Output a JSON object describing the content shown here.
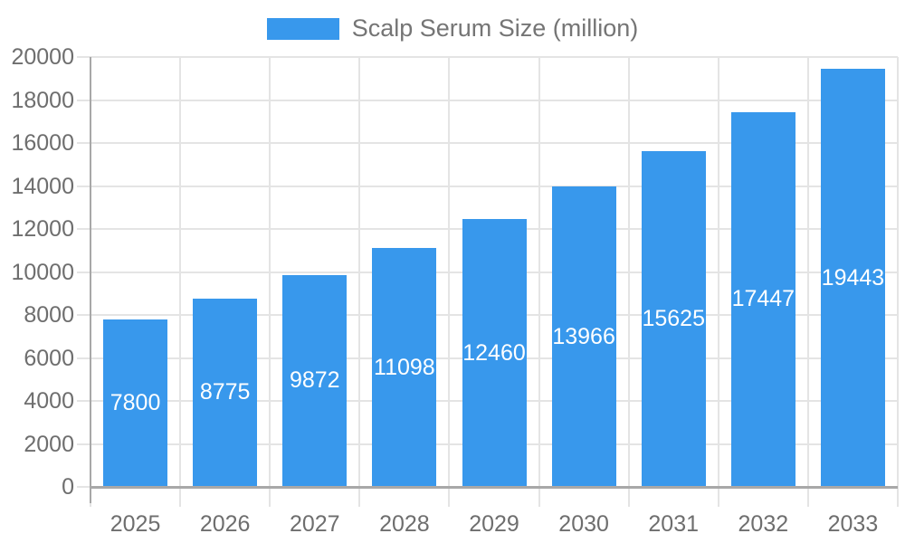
{
  "legend": {
    "label": "Scalp Serum Size (million)"
  },
  "colors": {
    "bar": "#3898ec",
    "grid": "#e4e4e4",
    "axis": "#a8a8a8",
    "text": "#6e6e6e",
    "bar_label": "#ffffff",
    "background": "#ffffff"
  },
  "chart_data": {
    "type": "bar",
    "title": "Scalp Serum Size (million)",
    "categories": [
      "2025",
      "2026",
      "2027",
      "2028",
      "2029",
      "2030",
      "2031",
      "2032",
      "2033"
    ],
    "values": [
      7800,
      8775,
      9872,
      11098,
      12460,
      13966,
      15625,
      17447,
      19443
    ],
    "xlabel": "",
    "ylabel": "",
    "ylim": [
      0,
      20000
    ],
    "ytick_step": 2000,
    "ytick_labels": [
      "0",
      "2000",
      "4000",
      "6000",
      "8000",
      "10000",
      "12000",
      "14000",
      "16000",
      "18000",
      "20000"
    ],
    "grid": true,
    "legend_position": "top",
    "bar_value_labels_inside": true
  }
}
